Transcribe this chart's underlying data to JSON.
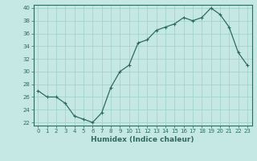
{
  "x": [
    0,
    1,
    2,
    3,
    4,
    5,
    6,
    7,
    8,
    9,
    10,
    11,
    12,
    13,
    14,
    15,
    16,
    17,
    18,
    19,
    20,
    21,
    22,
    23
  ],
  "y": [
    27,
    26,
    26,
    25,
    23,
    22.5,
    22,
    23.5,
    27.5,
    30,
    31,
    34.5,
    35,
    36.5,
    37,
    37.5,
    38.5,
    38,
    38.5,
    40,
    39,
    37,
    33,
    31
  ],
  "line_color": "#2e6b5e",
  "marker": "+",
  "marker_size": 3,
  "marker_linewidth": 0.8,
  "bg_color": "#c5e8e4",
  "grid_color": "#9fcfca",
  "xlabel": "Humidex (Indice chaleur)",
  "ylabel": "",
  "xlim": [
    -0.5,
    23.5
  ],
  "ylim": [
    21.5,
    40.5
  ],
  "yticks": [
    22,
    24,
    26,
    28,
    30,
    32,
    34,
    36,
    38,
    40
  ],
  "xticks": [
    0,
    1,
    2,
    3,
    4,
    5,
    6,
    7,
    8,
    9,
    10,
    11,
    12,
    13,
    14,
    15,
    16,
    17,
    18,
    19,
    20,
    21,
    22,
    23
  ],
  "tick_fontsize": 5,
  "label_fontsize": 6.5,
  "tick_color": "#2e6b5e",
  "label_color": "#2e6b5e",
  "spine_color": "#2e6b5e",
  "line_width": 0.9
}
